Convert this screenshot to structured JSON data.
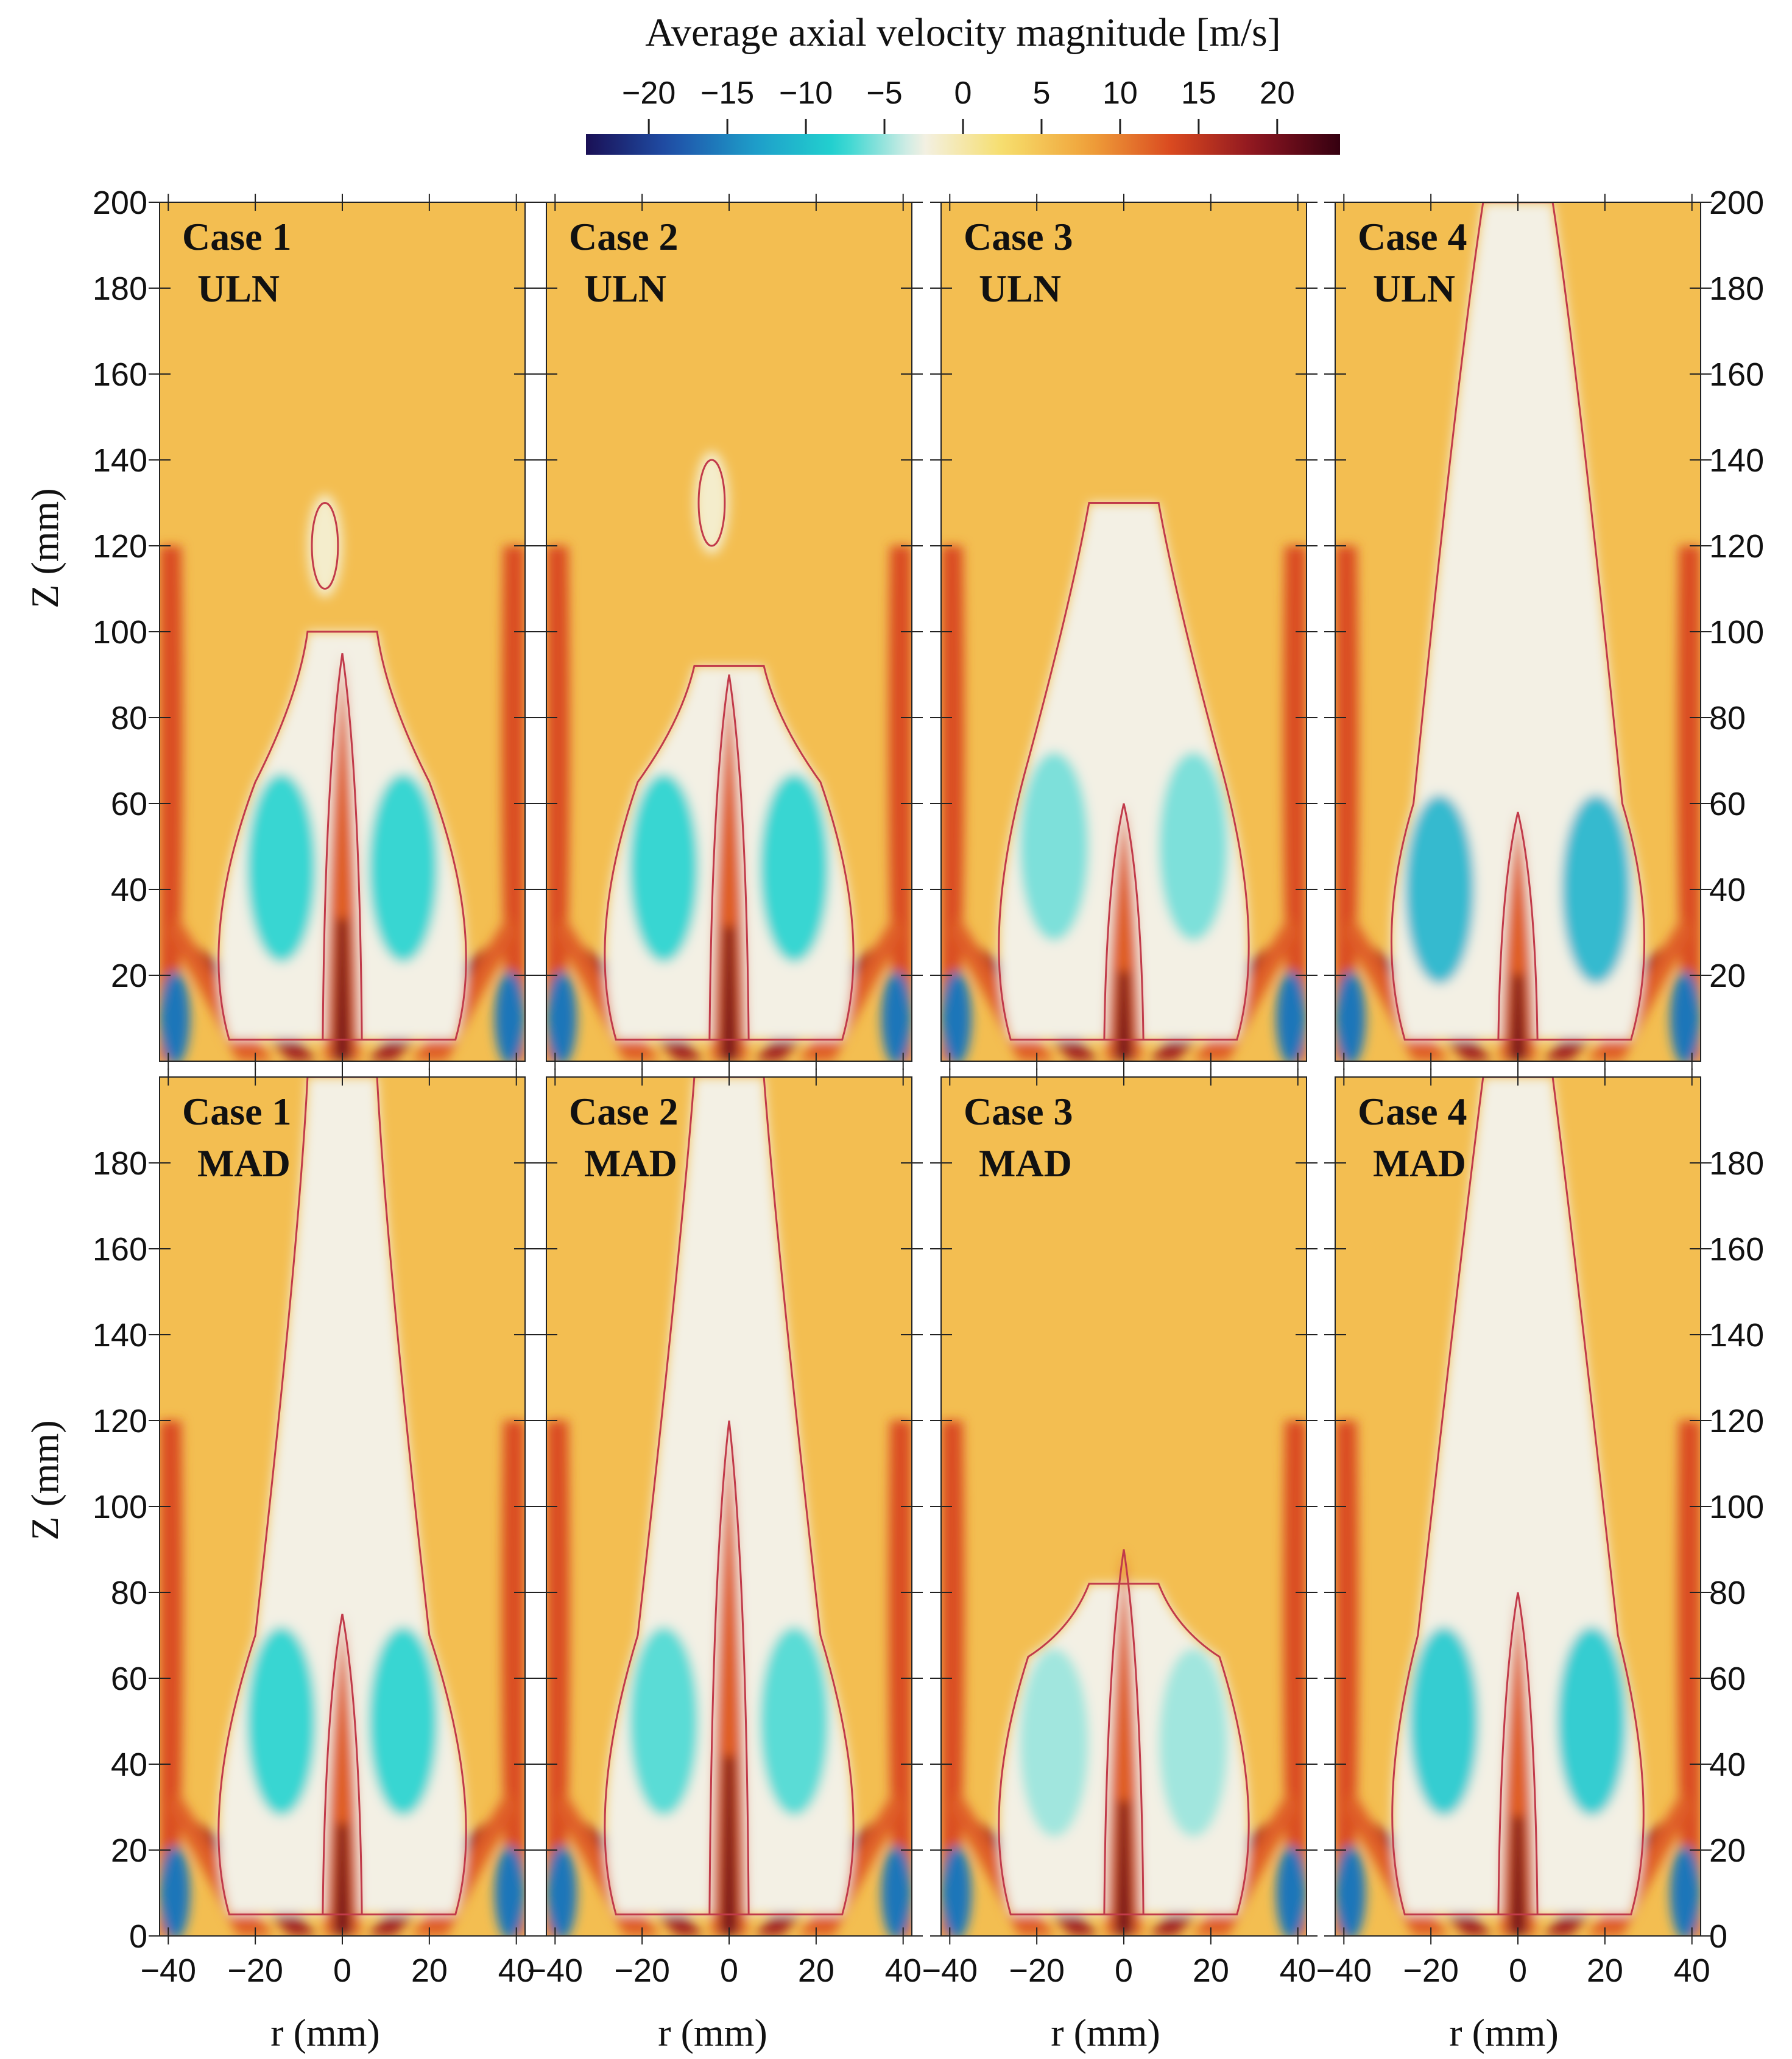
{
  "colorbar": {
    "title": "Average axial velocity magnitude [m/s]",
    "ticks": [
      -20,
      -15,
      -10,
      -5,
      0,
      5,
      10,
      15,
      20
    ],
    "range": [
      -24,
      24
    ],
    "colors": [
      "#1a1055",
      "#1f4fa8",
      "#1e9cc9",
      "#22d3cf",
      "#f3f1e8",
      "#f6dd6a",
      "#f0a23a",
      "#d9481f",
      "#8b1520",
      "#350010"
    ],
    "contour_color": "#c13a4a"
  },
  "chart_data": [
    {
      "type": "heatmap",
      "title": "Case 1",
      "subtitle": "ULN",
      "xlabel": "r (mm)",
      "ylabel": "Z (mm)",
      "xlim": [
        -42,
        42
      ],
      "ylim": [
        0,
        200
      ],
      "xticks": [
        -40,
        -20,
        0,
        20,
        40
      ],
      "yticks": [
        20,
        40,
        60,
        80,
        100,
        120,
        140,
        160,
        180,
        200
      ],
      "recirculation_peak_z": 45,
      "recirculation_width_r": 16,
      "recirculation_min_velocity": -8,
      "central_jet_top_z": 95,
      "recirculation_top_z": 100,
      "bubble_z": 120
    },
    {
      "type": "heatmap",
      "title": "Case 2",
      "subtitle": "ULN",
      "xlabel": "r (mm)",
      "ylabel": "Z (mm)",
      "xlim": [
        -42,
        42
      ],
      "ylim": [
        0,
        200
      ],
      "xticks": [
        -40,
        -20,
        0,
        20,
        40
      ],
      "yticks": [
        20,
        40,
        60,
        80,
        100,
        120,
        140,
        160,
        180,
        200
      ],
      "recirculation_peak_z": 45,
      "recirculation_width_r": 17,
      "recirculation_min_velocity": -8,
      "central_jet_top_z": 90,
      "recirculation_top_z": 92,
      "bubble_z": 130
    },
    {
      "type": "heatmap",
      "title": "Case 3",
      "subtitle": "ULN",
      "xlabel": "r (mm)",
      "ylabel": "Z (mm)",
      "xlim": [
        -42,
        42
      ],
      "ylim": [
        0,
        200
      ],
      "xticks": [
        -40,
        -20,
        0,
        20,
        40
      ],
      "yticks": [
        20,
        40,
        60,
        80,
        100,
        120,
        140,
        160,
        180,
        200
      ],
      "recirculation_peak_z": 50,
      "recirculation_width_r": 18,
      "recirculation_min_velocity": -6,
      "central_jet_top_z": 60,
      "recirculation_top_z": 130,
      "bubble_z": null
    },
    {
      "type": "heatmap",
      "title": "Case 4",
      "subtitle": "ULN",
      "xlabel": "r (mm)",
      "ylabel": "Z (mm)",
      "xlim": [
        -42,
        42
      ],
      "ylim": [
        0,
        200
      ],
      "xticks": [
        -40,
        -20,
        0,
        20,
        40
      ],
      "yticks": [
        20,
        40,
        60,
        80,
        100,
        120,
        140,
        160,
        180,
        200
      ],
      "recirculation_peak_z": 40,
      "recirculation_width_r": 20,
      "recirculation_min_velocity": -11,
      "central_jet_top_z": 58,
      "recirculation_top_z": 200,
      "bubble_z": null
    },
    {
      "type": "heatmap",
      "title": "Case 1",
      "subtitle": "MAD",
      "xlabel": "r (mm)",
      "ylabel": "Z (mm)",
      "xlim": [
        -42,
        42
      ],
      "ylim": [
        0,
        200
      ],
      "xticks": [
        -40,
        -20,
        0,
        20,
        40
      ],
      "yticks": [
        0,
        20,
        40,
        60,
        80,
        100,
        120,
        140,
        160,
        180
      ],
      "recirculation_peak_z": 50,
      "recirculation_width_r": 16,
      "recirculation_min_velocity": -8,
      "central_jet_top_z": 75,
      "recirculation_top_z": 200,
      "bubble_z": null
    },
    {
      "type": "heatmap",
      "title": "Case 2",
      "subtitle": "MAD",
      "xlabel": "r (mm)",
      "ylabel": "Z (mm)",
      "xlim": [
        -42,
        42
      ],
      "ylim": [
        0,
        200
      ],
      "xticks": [
        -40,
        -20,
        0,
        20,
        40
      ],
      "yticks": [
        0,
        20,
        40,
        60,
        80,
        100,
        120,
        140,
        160,
        180
      ],
      "recirculation_peak_z": 50,
      "recirculation_width_r": 17,
      "recirculation_min_velocity": -7,
      "central_jet_top_z": 120,
      "recirculation_top_z": 200,
      "bubble_z": null
    },
    {
      "type": "heatmap",
      "title": "Case 3",
      "subtitle": "MAD",
      "xlabel": "r (mm)",
      "ylabel": "Z (mm)",
      "xlim": [
        -42,
        42
      ],
      "ylim": [
        0,
        200
      ],
      "xticks": [
        -40,
        -20,
        0,
        20,
        40
      ],
      "yticks": [
        0,
        20,
        40,
        60,
        80,
        100,
        120,
        140,
        160,
        180
      ],
      "recirculation_peak_z": 45,
      "recirculation_width_r": 18,
      "recirculation_min_velocity": -5,
      "central_jet_top_z": 90,
      "recirculation_top_z": 82,
      "bubble_z": null
    },
    {
      "type": "heatmap",
      "title": "Case 4",
      "subtitle": "MAD",
      "xlabel": "r (mm)",
      "ylabel": "Z (mm)",
      "xlim": [
        -42,
        42
      ],
      "ylim": [
        0,
        200
      ],
      "xticks": [
        -40,
        -20,
        0,
        20,
        40
      ],
      "yticks": [
        0,
        20,
        40,
        60,
        80,
        100,
        120,
        140,
        160,
        180
      ],
      "recirculation_peak_z": 50,
      "recirculation_width_r": 19,
      "recirculation_min_velocity": -9,
      "central_jet_top_z": 80,
      "recirculation_top_z": 200,
      "bubble_z": null
    }
  ]
}
